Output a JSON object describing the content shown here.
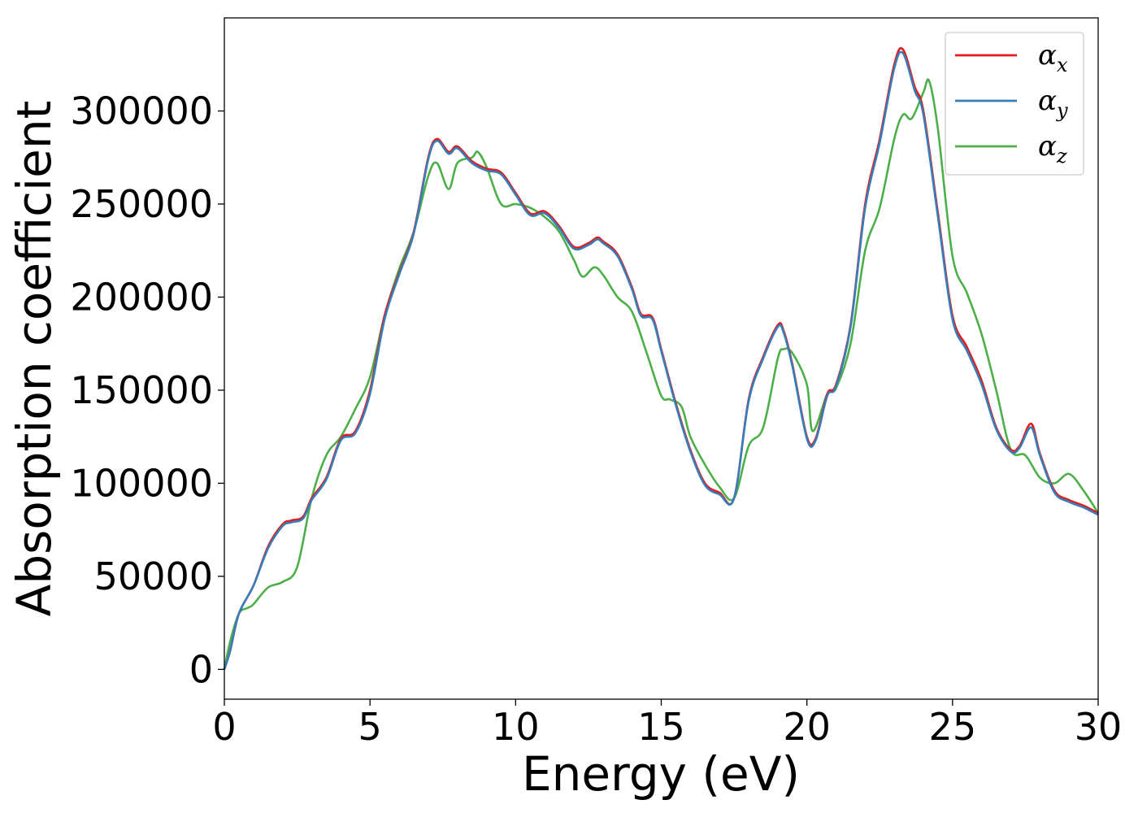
{
  "chart_data": {
    "type": "line",
    "xlabel": "Energy (eV)",
    "ylabel": "Absorption coefficient",
    "xlim": [
      0,
      30
    ],
    "ylim": [
      -16000,
      350000
    ],
    "xticks": [
      0,
      5,
      10,
      15,
      20,
      25,
      30
    ],
    "xtick_labels": [
      "0",
      "5",
      "10",
      "15",
      "20",
      "25",
      "30"
    ],
    "yticks": [
      0,
      50000,
      100000,
      150000,
      200000,
      250000,
      300000
    ],
    "ytick_labels": [
      "0",
      "50000",
      "100000",
      "150000",
      "200000",
      "250000",
      "300000"
    ],
    "grid": false,
    "legend_position": "top-right",
    "series": [
      {
        "name": "αx",
        "legend_symbol": "α",
        "legend_subscript": "x",
        "color": "#e41a1c",
        "x": [
          0,
          0.2,
          0.5,
          1.0,
          1.5,
          2.0,
          2.3,
          2.7,
          3.0,
          3.5,
          4.0,
          4.5,
          5.0,
          5.5,
          6.0,
          6.5,
          7.0,
          7.3,
          7.7,
          8.0,
          8.5,
          9.0,
          9.5,
          10.0,
          10.5,
          11.0,
          11.5,
          12.0,
          12.5,
          12.8,
          13.0,
          13.5,
          14.0,
          14.3,
          14.7,
          15.0,
          15.5,
          16.0,
          16.5,
          17.0,
          17.5,
          18.0,
          18.5,
          19.0,
          19.2,
          19.5,
          20.0,
          20.3,
          20.7,
          21.0,
          21.5,
          22.0,
          22.5,
          23.0,
          23.3,
          23.7,
          24.0,
          24.5,
          25.0,
          25.5,
          26.0,
          26.5,
          27.0,
          27.3,
          27.7,
          28.0,
          28.5,
          29.0,
          29.5,
          30.0
        ],
        "values": [
          0,
          10000,
          30000,
          45000,
          66000,
          78000,
          80000,
          82000,
          92000,
          103000,
          124000,
          128000,
          150000,
          190000,
          213000,
          235000,
          275000,
          285000,
          278000,
          281000,
          273000,
          269000,
          267000,
          256000,
          245000,
          246000,
          238000,
          227000,
          229000,
          232000,
          230000,
          223000,
          205000,
          191000,
          189000,
          172000,
          143000,
          118000,
          100000,
          95000,
          92000,
          145000,
          168000,
          185000,
          182000,
          164000,
          125000,
          124000,
          148000,
          153000,
          185000,
          250000,
          285000,
          325000,
          333000,
          313000,
          300000,
          245000,
          190000,
          173000,
          155000,
          130000,
          118000,
          120000,
          132000,
          116000,
          96000,
          91000,
          88000,
          84000
        ]
      },
      {
        "name": "αy",
        "legend_symbol": "α",
        "legend_subscript": "y",
        "color": "#377eb8",
        "x": [
          0,
          0.2,
          0.5,
          1.0,
          1.5,
          2.0,
          2.3,
          2.7,
          3.0,
          3.5,
          4.0,
          4.5,
          5.0,
          5.5,
          6.0,
          6.5,
          7.0,
          7.3,
          7.7,
          8.0,
          8.5,
          9.0,
          9.5,
          10.0,
          10.5,
          11.0,
          11.5,
          12.0,
          12.5,
          12.8,
          13.0,
          13.5,
          14.0,
          14.3,
          14.7,
          15.0,
          15.5,
          16.0,
          16.5,
          17.0,
          17.5,
          18.0,
          18.5,
          19.0,
          19.2,
          19.5,
          20.0,
          20.3,
          20.7,
          21.0,
          21.5,
          22.0,
          22.5,
          23.0,
          23.3,
          23.7,
          24.0,
          24.5,
          25.0,
          25.5,
          26.0,
          26.5,
          27.0,
          27.3,
          27.7,
          28.0,
          28.5,
          29.0,
          29.5,
          30.0
        ],
        "values": [
          0,
          10000,
          30000,
          45000,
          65000,
          77000,
          79000,
          81000,
          91000,
          102000,
          123000,
          127000,
          148000,
          188000,
          212000,
          234000,
          274000,
          284000,
          277000,
          280000,
          272000,
          268000,
          266000,
          255000,
          244000,
          245000,
          237000,
          226000,
          228000,
          231000,
          229000,
          222000,
          204000,
          190000,
          188000,
          171000,
          142000,
          117000,
          99000,
          94000,
          92000,
          144000,
          167000,
          184000,
          181000,
          163000,
          124000,
          123000,
          147000,
          152000,
          184000,
          248000,
          283000,
          323000,
          331000,
          311000,
          298000,
          243000,
          188000,
          171000,
          153000,
          129000,
          117000,
          119000,
          130000,
          115000,
          95000,
          90000,
          87000,
          83000
        ]
      },
      {
        "name": "αz",
        "legend_symbol": "α",
        "legend_subscript": "z",
        "color": "#4daf4a",
        "x": [
          0,
          0.2,
          0.5,
          0.8,
          1.0,
          1.5,
          2.0,
          2.5,
          3.0,
          3.5,
          4.0,
          4.5,
          5.0,
          5.5,
          6.0,
          6.5,
          7.0,
          7.3,
          7.7,
          8.0,
          8.5,
          8.7,
          9.0,
          9.5,
          10.0,
          10.5,
          11.0,
          11.5,
          12.0,
          12.3,
          12.7,
          13.0,
          13.5,
          14.0,
          14.5,
          15.0,
          15.3,
          15.7,
          16.0,
          16.5,
          17.0,
          17.5,
          18.0,
          18.5,
          19.0,
          19.2,
          19.5,
          20.0,
          20.2,
          20.7,
          21.0,
          21.5,
          22.0,
          22.5,
          23.0,
          23.3,
          23.6,
          24.0,
          24.2,
          24.5,
          25.0,
          25.5,
          26.0,
          26.5,
          27.0,
          27.5,
          28.0,
          28.5,
          29.0,
          29.5,
          30.0
        ],
        "values": [
          0,
          15000,
          30000,
          33000,
          35000,
          44000,
          47000,
          55000,
          92000,
          115000,
          125000,
          140000,
          157000,
          190000,
          215000,
          235000,
          265000,
          272000,
          258000,
          272000,
          275000,
          278000,
          270000,
          250000,
          250000,
          248000,
          243000,
          235000,
          220000,
          211000,
          216000,
          212000,
          200000,
          192000,
          170000,
          147000,
          145000,
          141000,
          125000,
          110000,
          98000,
          92000,
          120000,
          130000,
          167000,
          172000,
          170000,
          153000,
          128000,
          148000,
          151000,
          175000,
          225000,
          248000,
          285000,
          298000,
          296000,
          310000,
          316000,
          290000,
          222000,
          202000,
          180000,
          150000,
          118000,
          115000,
          103000,
          100000,
          105000,
          96000,
          84000
        ]
      }
    ]
  }
}
